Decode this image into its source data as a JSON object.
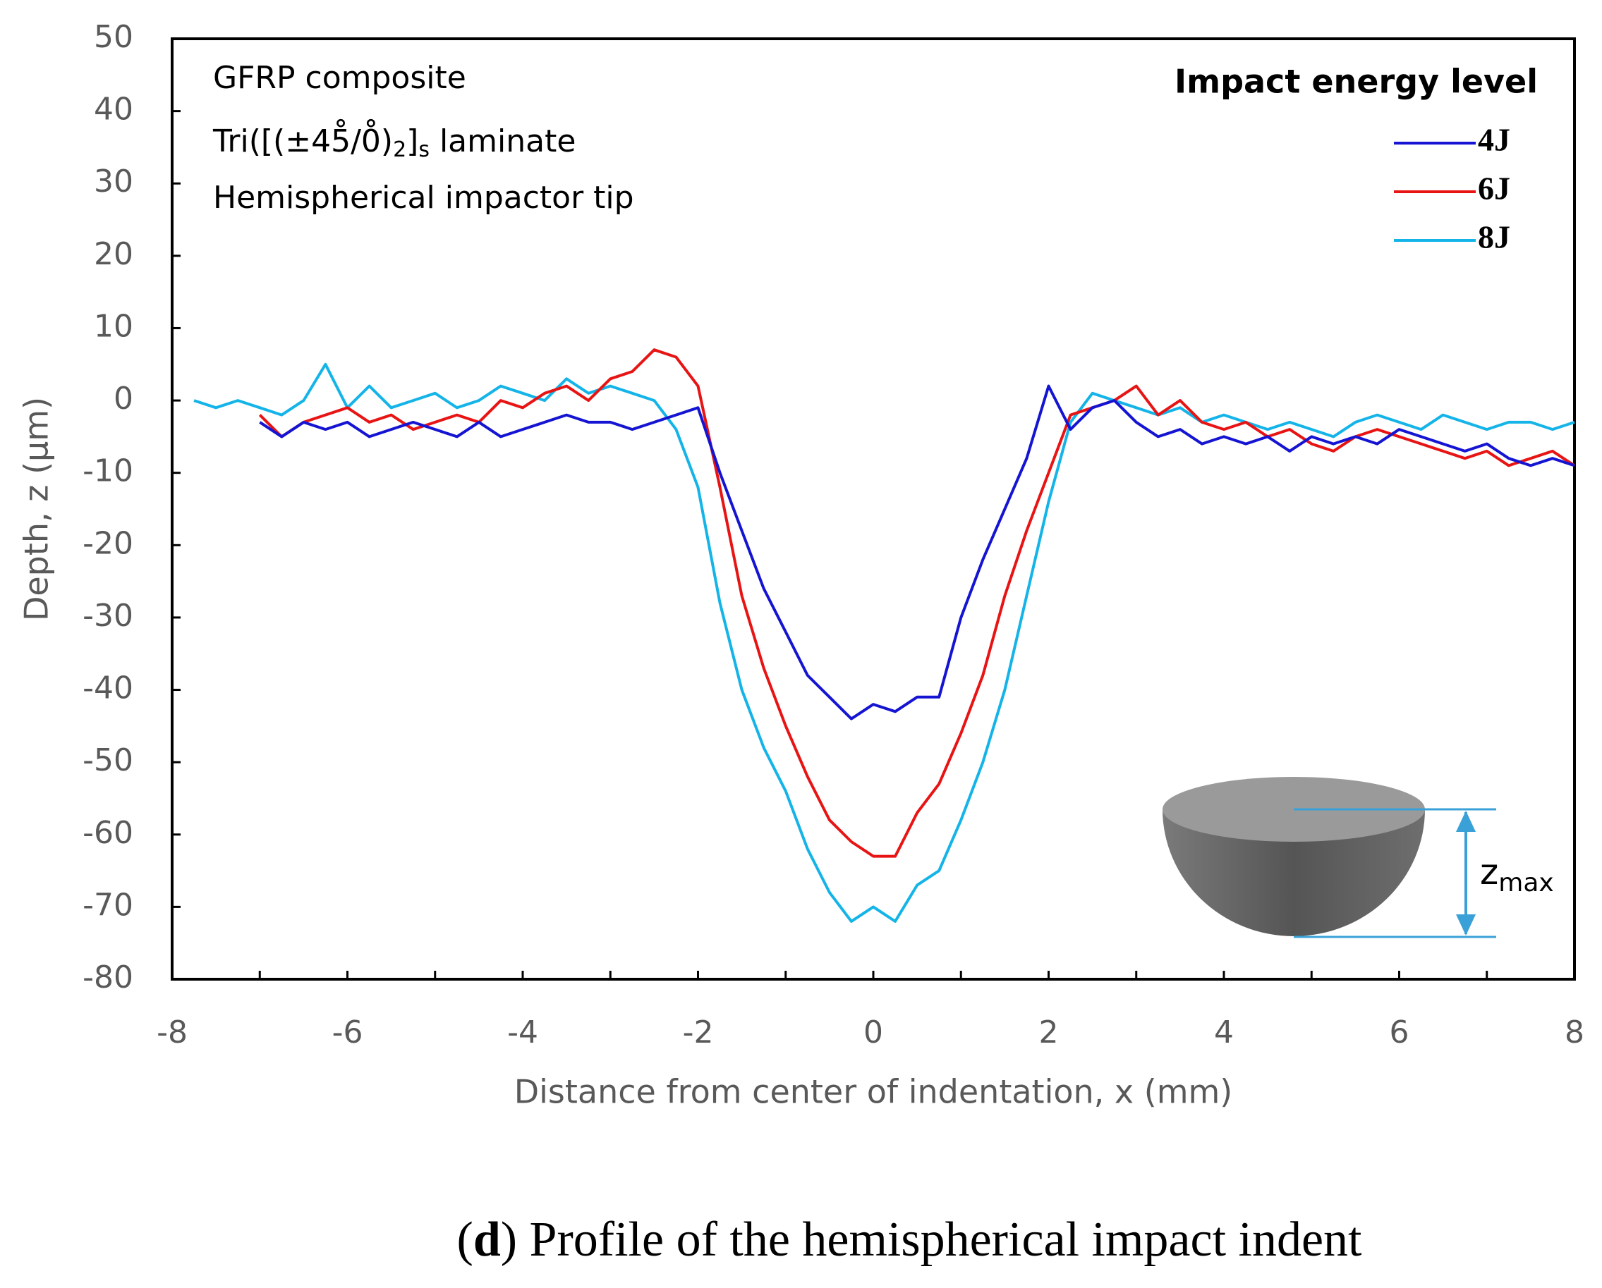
{
  "chart_data": {
    "type": "line",
    "annotations": [
      "GFRP composite",
      "Hemispherical impactor tip"
    ],
    "laminate": {
      "pre": "Tri([(±45̊/0̊)",
      "sub": "2",
      "mid": "]",
      "sub2": "s",
      "post": " laminate"
    },
    "legend_title": "Impact energy level",
    "xlabel": "Distance from center of indentation, x (mm)",
    "ylabel": "Depth, z (µm)",
    "inset_label": {
      "main": "z",
      "sub": "max"
    },
    "caption": {
      "open": "(",
      "letter": "d",
      "rest": ") Profile of the hemispherical impact indent"
    },
    "xlim": [
      -8,
      8
    ],
    "ylim": [
      -80,
      50
    ],
    "xticks": [
      -8,
      -6,
      -4,
      -2,
      0,
      2,
      4,
      6,
      8
    ],
    "xminorticks": [
      -7,
      -5,
      -3,
      -1,
      1,
      3,
      5,
      7
    ],
    "yticks": [
      50,
      40,
      30,
      20,
      10,
      0,
      -10,
      -20,
      -30,
      -40,
      -50,
      -60,
      -70,
      -80
    ],
    "legend": "upper right",
    "x": [
      -7.75,
      -7.5,
      -7.25,
      -7,
      -6.75,
      -6.5,
      -6.25,
      -6,
      -5.75,
      -5.5,
      -5.25,
      -5,
      -4.75,
      -4.5,
      -4.25,
      -4,
      -3.75,
      -3.5,
      -3.25,
      -3,
      -2.75,
      -2.5,
      -2.25,
      -2,
      -1.75,
      -1.5,
      -1.25,
      -1,
      -0.75,
      -0.5,
      -0.25,
      0,
      0.25,
      0.5,
      0.75,
      1,
      1.25,
      1.5,
      1.75,
      2,
      2.25,
      2.5,
      2.75,
      3,
      3.25,
      3.5,
      3.75,
      4,
      4.25,
      4.5,
      4.75,
      5,
      5.25,
      5.5,
      5.75,
      6,
      6.25,
      6.5,
      6.75,
      7,
      7.25,
      7.5,
      7.75,
      8
    ],
    "series": [
      {
        "name": "4J",
        "color": "#1414d2",
        "values": [
          null,
          null,
          null,
          -3,
          -5,
          -3,
          -4,
          -3,
          -5,
          -4,
          -3,
          -4,
          -5,
          -3,
          -5,
          -4,
          -3,
          -2,
          -3,
          -3,
          -4,
          -3,
          -2,
          -1,
          -10,
          -18,
          -26,
          -32,
          -38,
          -41,
          -44,
          -42,
          -43,
          -41,
          -41,
          -30,
          -22,
          -15,
          -8,
          2,
          -4,
          -1,
          0,
          -3,
          -5,
          -4,
          -6,
          -5,
          -6,
          -5,
          -7,
          -5,
          -6,
          -5,
          -6,
          -4,
          -5,
          -6,
          -7,
          -6,
          -8,
          -9,
          -8,
          -9
        ]
      },
      {
        "name": "6J",
        "color": "#e81414",
        "values": [
          null,
          null,
          null,
          -2,
          -5,
          -3,
          -2,
          -1,
          -3,
          -2,
          -4,
          -3,
          -2,
          -3,
          0,
          -1,
          1,
          2,
          0,
          3,
          4,
          7,
          6,
          2,
          -12,
          -27,
          -37,
          -45,
          -52,
          -58,
          -61,
          -63,
          -63,
          -57,
          -53,
          -46,
          -38,
          -27,
          -18,
          -10,
          -2,
          -1,
          0,
          2,
          -2,
          0,
          -3,
          -4,
          -3,
          -5,
          -4,
          -6,
          -7,
          -5,
          -4,
          -5,
          -6,
          -7,
          -8,
          -7,
          -9,
          -8,
          -7,
          -9
        ]
      },
      {
        "name": "8J",
        "color": "#14b4e8",
        "values": [
          0,
          -1,
          0,
          -1,
          -2,
          0,
          5,
          -1,
          2,
          -1,
          0,
          1,
          -1,
          0,
          2,
          1,
          0,
          3,
          1,
          2,
          1,
          0,
          -4,
          -12,
          -28,
          -40,
          -48,
          -54,
          -62,
          -68,
          -72,
          -70,
          -72,
          -67,
          -65,
          -58,
          -50,
          -40,
          -27,
          -14,
          -3,
          1,
          0,
          -1,
          -2,
          -1,
          -3,
          -2,
          -3,
          -4,
          -3,
          -4,
          -5,
          -3,
          -2,
          -3,
          -4,
          -2,
          -3,
          -4,
          -3,
          -3,
          -4,
          -3
        ]
      }
    ]
  }
}
